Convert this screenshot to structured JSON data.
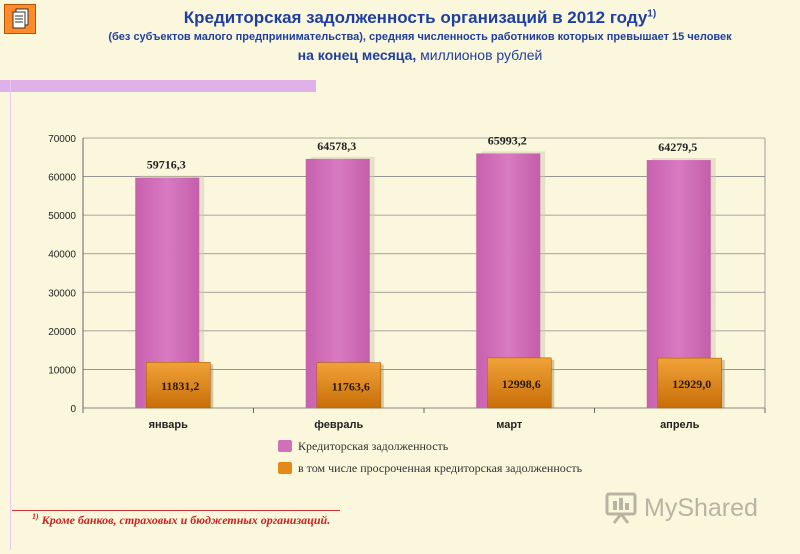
{
  "header": {
    "title": "Кредиторская задолженность организаций в 2012 году",
    "title_sup": "1)",
    "subtitle_1": "(без субъектов малого предпринимательства), средняя численность работников которых превышает 15 человек",
    "subtitle_2_bold": "на конец месяца,",
    "subtitle_2_rest": " миллионов рублей"
  },
  "legend": {
    "series_1": "Кредиторская задолженность",
    "series_2": "в том числе просроченная кредиторская задолженность"
  },
  "footnote": {
    "marker": "1)",
    "text": " Кроме банков, страховых и бюджетных организаций."
  },
  "logo": {
    "text": "MyShared",
    "icon": "presentation-board-icon"
  },
  "colors": {
    "series_1": "#d070b8",
    "series_2": "#e48a18",
    "title": "#1f3fa0",
    "footnote": "#cc2222"
  },
  "chart_data": {
    "type": "bar",
    "categories": [
      "январь",
      "февраль",
      "март",
      "апрель"
    ],
    "series": [
      {
        "name": "Кредиторская задолженность",
        "values": [
          59716.3,
          64578.3,
          65993.2,
          64279.5
        ],
        "labels": [
          "59716,3",
          "64578,3",
          "65993,2",
          "64279,5"
        ]
      },
      {
        "name": "в том числе просроченная кредиторская задолженность",
        "values": [
          11831.2,
          11763.6,
          12998.6,
          12929.0
        ],
        "labels": [
          "11831,2",
          "11763,6",
          "12998,6",
          "12929,0"
        ]
      }
    ],
    "ylim": [
      0,
      70000
    ],
    "yticks": [
      0,
      10000,
      20000,
      30000,
      40000,
      50000,
      60000,
      70000
    ],
    "grid": true,
    "legend_position": "bottom"
  }
}
